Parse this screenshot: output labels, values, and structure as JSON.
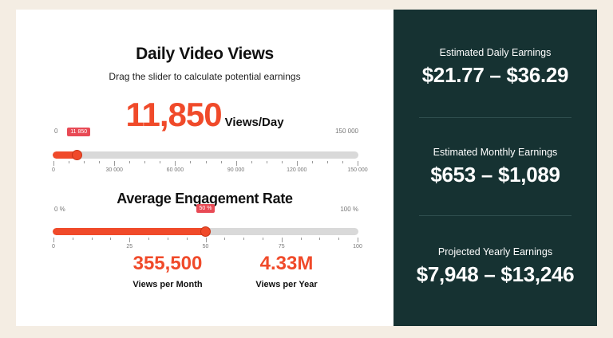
{
  "calculator": {
    "views_title": "Daily Video Views",
    "views_subtitle": "Drag the slider to calculate potential earnings",
    "views_value": "11,850",
    "views_unit": "Views/Day",
    "views_slider": {
      "min_label": "0",
      "max_label": "150 000",
      "tooltip": "11 850",
      "value": 11850,
      "max": 150000,
      "ticks": [
        "0",
        "30 000",
        "60 000",
        "90 000",
        "120 000",
        "150 000"
      ]
    },
    "engagement_title": "Average Engagement Rate",
    "engagement_slider": {
      "min_label": "0 %",
      "max_label": "100 %",
      "tooltip": "50 %",
      "value": 50,
      "max": 100,
      "ticks": [
        "0",
        "25",
        "50",
        "75",
        "100"
      ]
    },
    "monthly_views": {
      "value": "355,500",
      "label": "Views per Month"
    },
    "yearly_views": {
      "value": "4.33M",
      "label": "Views per Year"
    }
  },
  "earnings": {
    "daily": {
      "label": "Estimated Daily Earnings",
      "value": "$21.77 – $36.29"
    },
    "monthly": {
      "label": "Estimated Monthly Earnings",
      "value": "$653 – $1,089"
    },
    "yearly": {
      "label": "Projected Yearly Earnings",
      "value": "$7,948 – $13,246"
    }
  },
  "colors": {
    "accent": "#f04a2a",
    "panel": "#163232",
    "background": "#f4ede3",
    "tooltip": "#e84a55"
  }
}
